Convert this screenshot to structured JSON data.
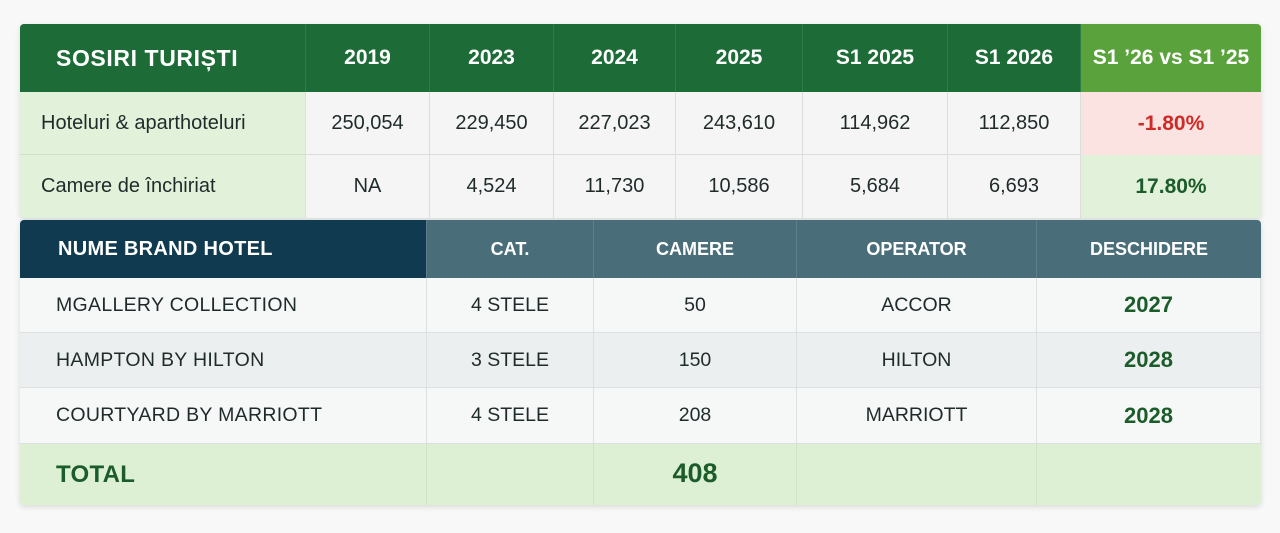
{
  "arrivals": {
    "title": "SOSIRI TURIȘTI",
    "columns": [
      "2019",
      "2023",
      "2024",
      "2025",
      "S1 2025",
      "S1 2026"
    ],
    "delta_header": "S1 ’26 vs S1 ’25",
    "rows": [
      {
        "label": "Hoteluri & aparthoteluri",
        "values": [
          "250,054",
          "229,450",
          "227,023",
          "243,610",
          "114,962",
          "112,850"
        ],
        "delta": "-1.80%"
      },
      {
        "label": "Camere de închiriat",
        "values": [
          "NA",
          "4,524",
          "11,730",
          "10,586",
          "5,684",
          "6,693"
        ],
        "delta": "17.80%"
      }
    ],
    "colors": {
      "negative": "#d02a26",
      "positive": "#1c5c2a",
      "header": "#1d6b36",
      "delta_header": "#5aa23c"
    }
  },
  "hotels": {
    "headers": [
      "NUME BRAND HOTEL",
      "CAT.",
      "CAMERE",
      "OPERATOR",
      "DESCHIDERE"
    ],
    "rows": [
      {
        "name": "MGALLERY COLLECTION",
        "cat": "4 STELE",
        "rooms": "50",
        "operator": "ACCOR",
        "opening": "2027"
      },
      {
        "name": "HAMPTON BY HILTON",
        "cat": "3 STELE",
        "rooms": "150",
        "operator": "HILTON",
        "opening": "2028"
      },
      {
        "name": "COURTYARD BY MARRIOTT",
        "cat": "4 STELE",
        "rooms": "208",
        "operator": "MARRIOTT",
        "opening": "2028"
      }
    ],
    "total": {
      "label": "TOTAL",
      "rooms": "408"
    },
    "colors": {
      "title_header": "#0f3a4f",
      "header": "#4a6e79",
      "year": "#1c5c2a",
      "total_bg": "#ddf0d4"
    }
  }
}
